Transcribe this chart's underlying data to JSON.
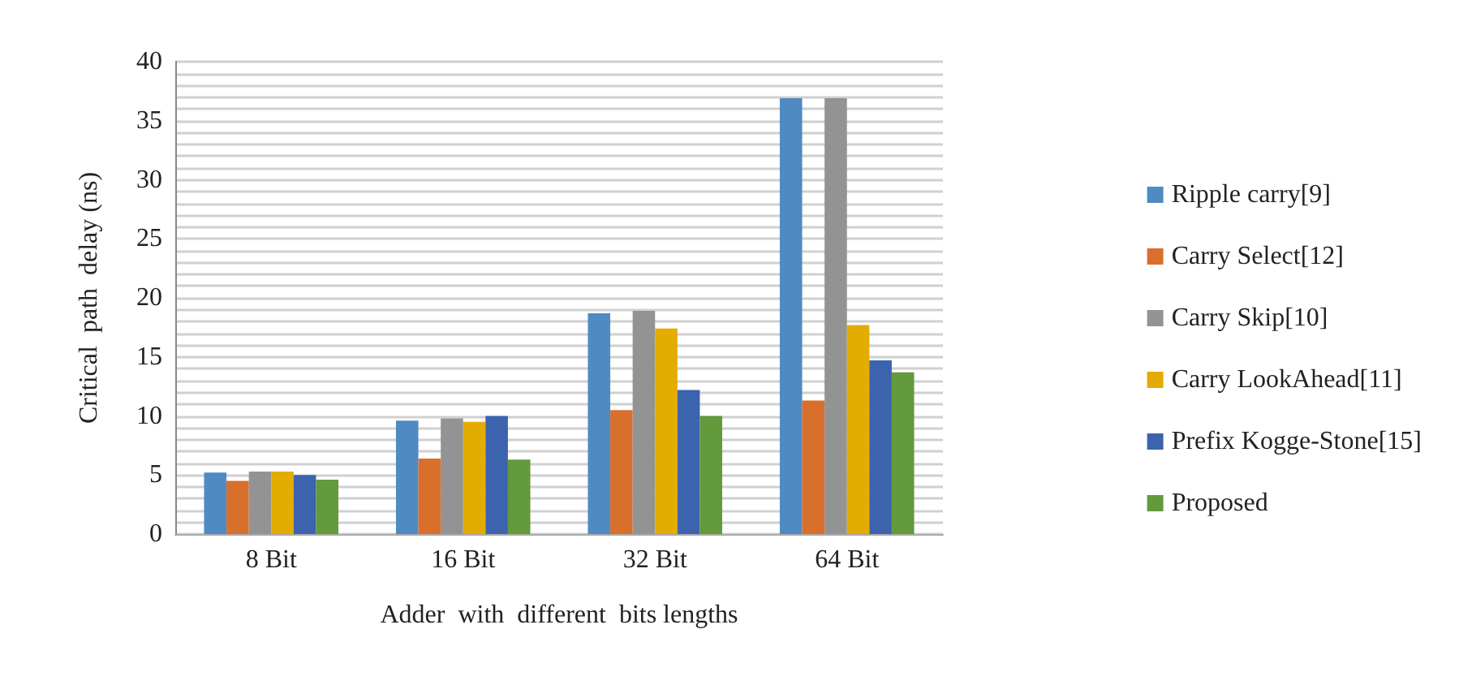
{
  "chart_data": {
    "type": "bar",
    "xlabel": "Adder  with  different  bits lengths",
    "ylabel": "Critical  path  delay (ns)",
    "categories": [
      "8 Bit",
      "16 Bit",
      "32 Bit",
      "64 Bit"
    ],
    "series": [
      {
        "name": "Ripple carry[9]",
        "color": "#4f8bc2",
        "values": [
          5.2,
          9.6,
          18.7,
          36.9
        ]
      },
      {
        "name": "Carry Select[12]",
        "color": "#d86f2b",
        "values": [
          4.5,
          6.4,
          10.5,
          11.3
        ]
      },
      {
        "name": "Carry Skip[10]",
        "color": "#939393",
        "values": [
          5.3,
          9.8,
          18.9,
          36.9
        ]
      },
      {
        "name": "Carry LookAhead[11]",
        "color": "#e4ab00",
        "values": [
          5.3,
          9.5,
          17.4,
          17.7
        ]
      },
      {
        "name": "Prefix Kogge-Stone[15]",
        "color": "#3c63ad",
        "values": [
          5.0,
          10.0,
          12.2,
          14.7
        ]
      },
      {
        "name": "Proposed",
        "color": "#629a3c",
        "values": [
          4.6,
          6.3,
          10.0,
          13.7
        ]
      }
    ],
    "ylim": [
      0,
      40
    ],
    "yticks": [
      0,
      {
        "value": 1,
        "label": null
      },
      {
        "value": 2,
        "label": null
      },
      {
        "value": 3,
        "label": null
      },
      {
        "value": 4,
        "label": null
      },
      5,
      {
        "value": 6,
        "label": null
      },
      {
        "value": 7,
        "label": null
      },
      {
        "value": 8,
        "label": null
      },
      {
        "value": 9,
        "label": null
      },
      10,
      {
        "value": 11,
        "label": null
      },
      {
        "value": 12,
        "label": null
      },
      {
        "value": 13,
        "label": null
      },
      {
        "value": 14,
        "label": null
      },
      15,
      {
        "value": 16,
        "label": null
      },
      {
        "value": 17,
        "label": null
      },
      {
        "value": 18,
        "label": null
      },
      {
        "value": 19,
        "label": null
      },
      20,
      {
        "value": 21,
        "label": null
      },
      {
        "value": 22,
        "label": null
      },
      {
        "value": 23,
        "label": null
      },
      {
        "value": 24,
        "label": null
      },
      25,
      {
        "value": 26,
        "label": null
      },
      {
        "value": 27,
        "label": null
      },
      {
        "value": 28,
        "label": null
      },
      {
        "value": 29,
        "label": null
      },
      30,
      {
        "value": 31,
        "label": null
      },
      {
        "value": 32,
        "label": null
      },
      {
        "value": 33,
        "label": null
      },
      {
        "value": 34,
        "label": null
      },
      35,
      {
        "value": 36,
        "label": null
      },
      {
        "value": 37,
        "label": null
      },
      {
        "value": 38,
        "label": null
      },
      {
        "value": 39,
        "label": null
      },
      40
    ],
    "grid": "y",
    "legend": "right"
  }
}
